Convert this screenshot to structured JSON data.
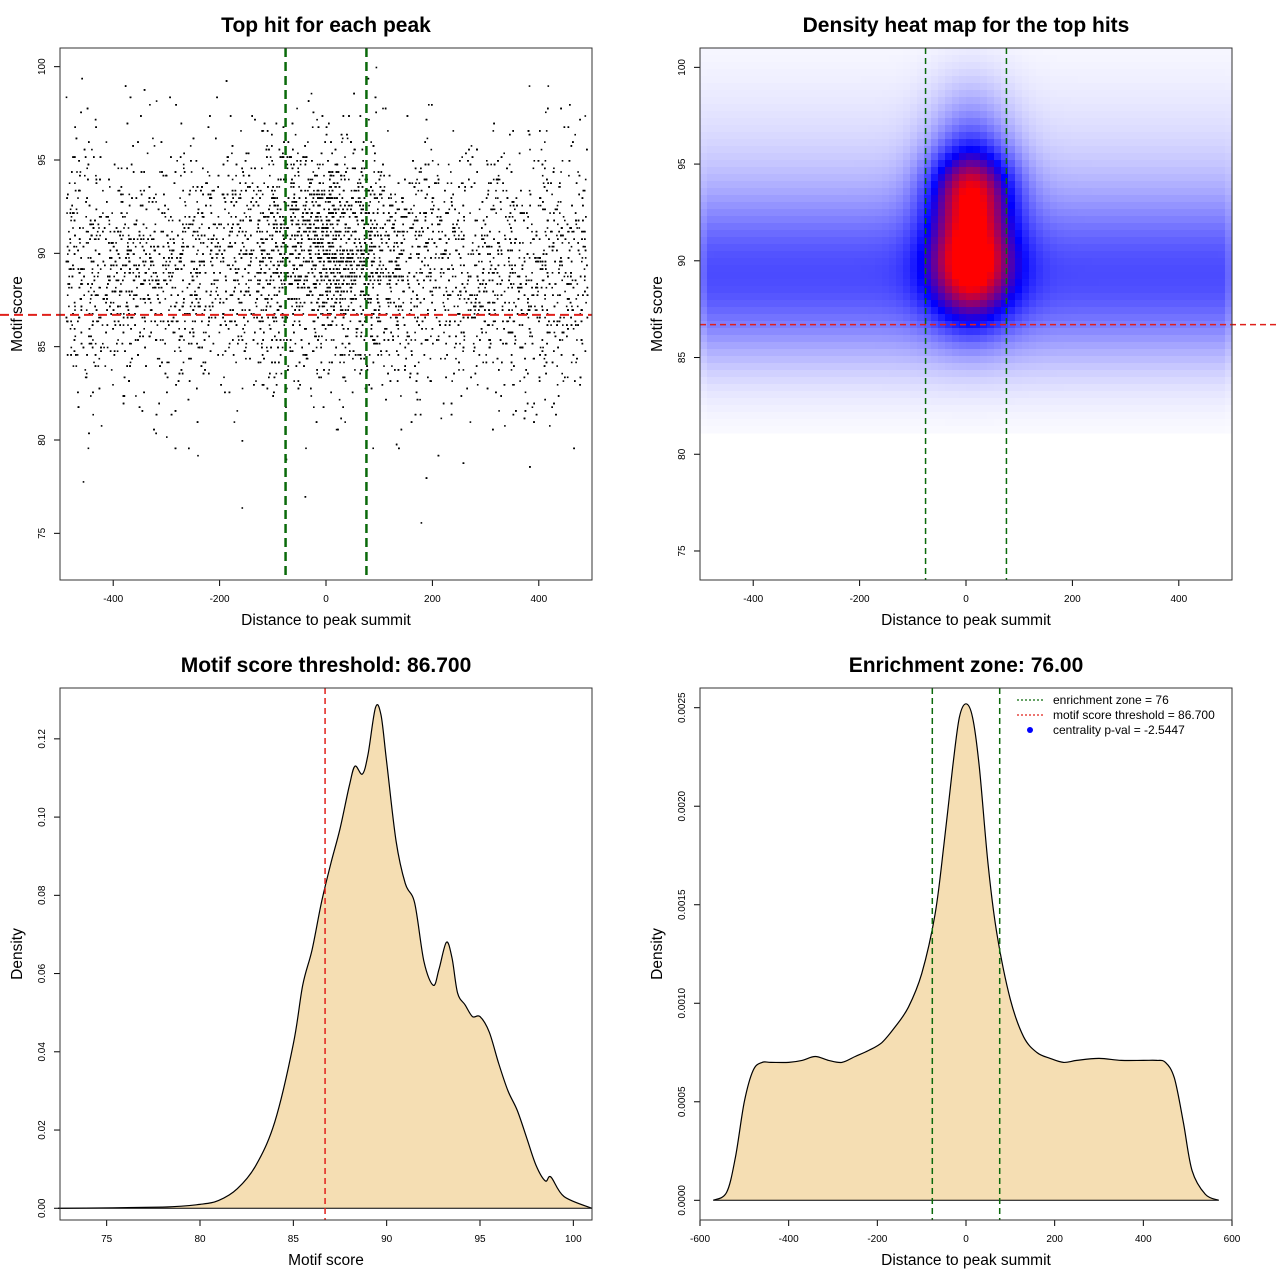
{
  "chart_data": [
    {
      "type": "scatter",
      "title": "Top hit for each peak",
      "xlabel": "Distance to peak summit",
      "ylabel": "Motif score",
      "xlim": [
        -500,
        500
      ],
      "ylim": [
        72.5,
        101
      ],
      "xticks": [
        "-400",
        "-200",
        "0",
        "200",
        "400"
      ],
      "yticks": [
        "75",
        "80",
        "85",
        "90",
        "95",
        "100"
      ],
      "threshold_y": 86.7,
      "zone_x": [
        -76,
        76
      ],
      "approx_points": 9000,
      "colors": {
        "points": "#000000",
        "threshold": "#e0201b",
        "zone": "#0a6a0a"
      }
    },
    {
      "type": "heatmap",
      "title": "Density heat map for the top hits",
      "xlabel": "Distance to peak summit",
      "ylabel": "Motif score",
      "xlim": [
        -500,
        500
      ],
      "ylim": [
        73.5,
        101
      ],
      "xticks": [
        "-400",
        "-200",
        "0",
        "200",
        "400"
      ],
      "yticks": [
        "75",
        "80",
        "85",
        "90",
        "95",
        "100"
      ],
      "threshold_y": 86.7,
      "zone_x": [
        -76,
        76
      ],
      "peak": {
        "x": 10,
        "y": 90
      },
      "colors": {
        "low": "#ffffff",
        "mid": "#0000ff",
        "high": "#ff0000",
        "threshold": "#e0201b",
        "zone": "#0a6a0a"
      }
    },
    {
      "type": "area",
      "title": "Motif score threshold: 86.700",
      "xlabel": "Motif score",
      "ylabel": "Density",
      "xlim": [
        72.5,
        101
      ],
      "ylim": [
        -0.003,
        0.133
      ],
      "xticks": [
        "75",
        "80",
        "85",
        "90",
        "95",
        "100"
      ],
      "yticks": [
        "0.00",
        "0.02",
        "0.04",
        "0.06",
        "0.08",
        "0.10",
        "0.12"
      ],
      "threshold_x": 86.7,
      "x": [
        72.4,
        78,
        80,
        81,
        82,
        83,
        84,
        85,
        85.5,
        86,
        86.5,
        87,
        87.5,
        88,
        88.3,
        88.7,
        89,
        89.4,
        89.7,
        90,
        90.5,
        91,
        91.5,
        92,
        92.5,
        92.8,
        93.2,
        93.5,
        93.8,
        94.2,
        94.6,
        95,
        95.5,
        96,
        96.5,
        97,
        97.5,
        98,
        98.5,
        98.8,
        99.5,
        101
      ],
      "y": [
        0,
        0.0003,
        0.001,
        0.002,
        0.005,
        0.011,
        0.022,
        0.042,
        0.057,
        0.066,
        0.078,
        0.088,
        0.097,
        0.108,
        0.113,
        0.111,
        0.116,
        0.128,
        0.126,
        0.114,
        0.094,
        0.083,
        0.078,
        0.063,
        0.057,
        0.061,
        0.068,
        0.064,
        0.055,
        0.052,
        0.049,
        0.049,
        0.045,
        0.037,
        0.03,
        0.025,
        0.018,
        0.011,
        0.007,
        0.008,
        0.003,
        0
      ],
      "colors": {
        "fill": "#f5deb3",
        "line": "#000000",
        "threshold": "#e0201b"
      }
    },
    {
      "type": "area",
      "title": "Enrichment zone: 76.00",
      "xlabel": "Distance to peak summit",
      "ylabel": "Density",
      "xlim": [
        -600,
        600
      ],
      "ylim": [
        -0.0001,
        0.0026
      ],
      "xticks": [
        "-600",
        "-400",
        "-200",
        "0",
        "200",
        "400",
        "600"
      ],
      "yticks": [
        "0.0000",
        "0.0005",
        "0.0010",
        "0.0015",
        "0.0020",
        "0.0025"
      ],
      "zone_x": [
        -76,
        76
      ],
      "x": [
        -570,
        -540,
        -520,
        -500,
        -480,
        -460,
        -440,
        -400,
        -370,
        -340,
        -310,
        -280,
        -250,
        -220,
        -190,
        -160,
        -130,
        -100,
        -70,
        -50,
        -30,
        -15,
        0,
        15,
        30,
        50,
        70,
        100,
        130,
        160,
        190,
        220,
        250,
        300,
        350,
        400,
        430,
        450,
        470,
        490,
        510,
        540,
        570
      ],
      "y": [
        0,
        4e-05,
        0.00022,
        0.0005,
        0.00066,
        0.0007,
        0.0007,
        0.0007,
        0.00071,
        0.00073,
        0.00071,
        0.0007,
        0.00073,
        0.00076,
        0.0008,
        0.00088,
        0.00098,
        0.00115,
        0.00145,
        0.0018,
        0.0022,
        0.00245,
        0.00252,
        0.00245,
        0.0022,
        0.0017,
        0.00135,
        0.00102,
        0.00083,
        0.00075,
        0.00072,
        0.0007,
        0.00071,
        0.00072,
        0.00071,
        0.00071,
        0.00071,
        0.0007,
        0.00062,
        0.0004,
        0.00015,
        3e-05,
        0
      ],
      "colors": {
        "fill": "#f5deb3",
        "line": "#000000",
        "zone": "#0a6a0a",
        "threshold": "#e0201b",
        "centrality": "#0000ff"
      },
      "legend": {
        "position": "top-right",
        "entries": [
          "enrichment zone = 76",
          "motif score threshold = 86.700",
          "centrality p-val = -2.5447"
        ]
      }
    }
  ]
}
